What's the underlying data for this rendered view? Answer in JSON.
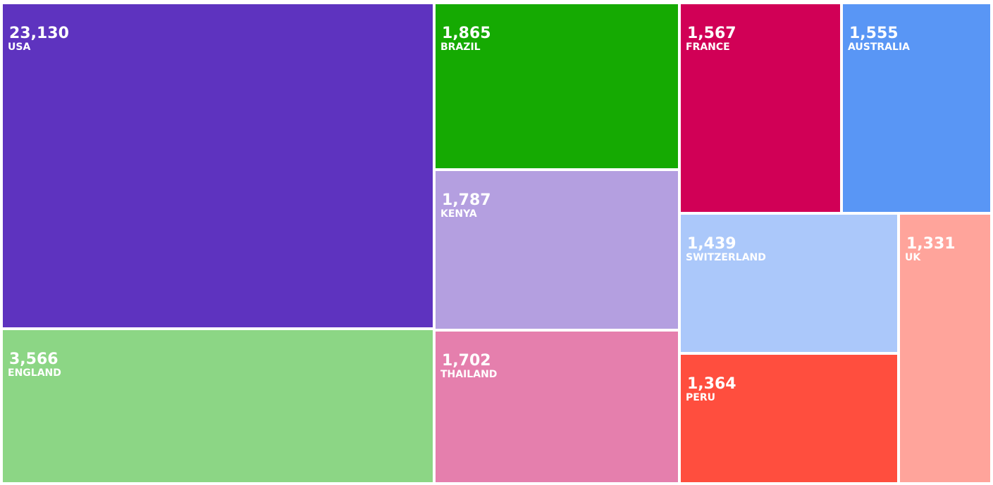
{
  "chart_data": {
    "type": "treemap",
    "title": "",
    "items": [
      {
        "name": "USA",
        "value": 23130,
        "value_label": "23,130",
        "color": "#5e33bf"
      },
      {
        "name": "ENGLAND",
        "value": 3566,
        "value_label": "3,566",
        "color": "#8cd685"
      },
      {
        "name": "BRAZIL",
        "value": 1865,
        "value_label": "1,865",
        "color": "#15aa02"
      },
      {
        "name": "KENYA",
        "value": 1787,
        "value_label": "1,787",
        "color": "#b49fe0"
      },
      {
        "name": "THAILAND",
        "value": 1702,
        "value_label": "1,702",
        "color": "#e57fad"
      },
      {
        "name": "FRANCE",
        "value": 1567,
        "value_label": "1,567",
        "color": "#d10056"
      },
      {
        "name": "AUSTRALIA",
        "value": 1555,
        "value_label": "1,555",
        "color": "#5996f5"
      },
      {
        "name": "SWITZERLAND",
        "value": 1439,
        "value_label": "1,439",
        "color": "#abc8fa"
      },
      {
        "name": "PERU",
        "value": 1364,
        "value_label": "1,364",
        "color": "#ff4e3e"
      },
      {
        "name": "UK",
        "value": 1331,
        "value_label": "1,331",
        "color": "#ffa49b"
      }
    ]
  }
}
